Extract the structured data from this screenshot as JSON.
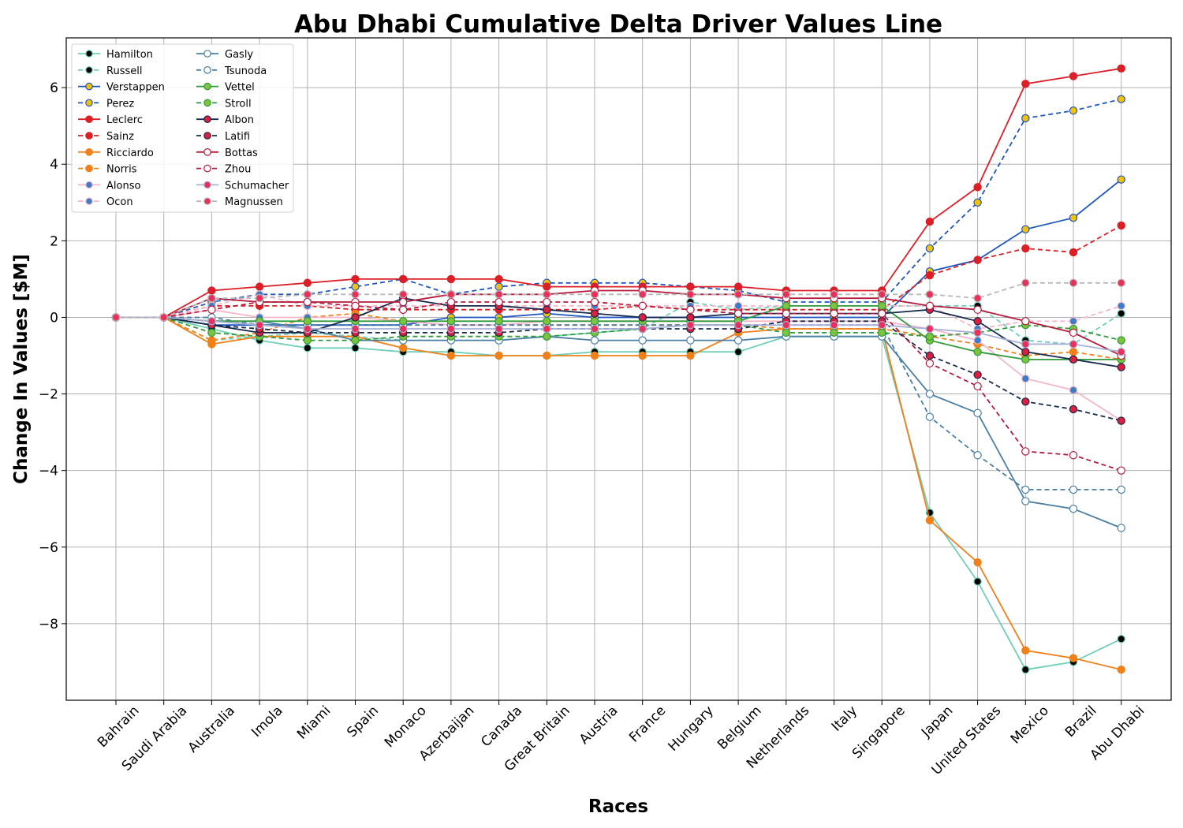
{
  "chart_data": {
    "type": "line",
    "title": "Abu Dhabi Cumulative Delta Driver Values Line",
    "xlabel": "Races",
    "ylabel": "Change In Values [$M]",
    "ylim": [
      -10,
      7.3
    ],
    "yticks": [
      -8,
      -6,
      -4,
      -2,
      0,
      2,
      4,
      6
    ],
    "grid": true,
    "legend_placement": "top-left",
    "categories": [
      "Bahrain",
      "Saudi Arabia",
      "Australia",
      "Imola",
      "Miami",
      "Spain",
      "Monaco",
      "Azerbaijan",
      "Canada",
      "Great Britain",
      "Austria",
      "France",
      "Hungary",
      "Belgium",
      "Netherlands",
      "Italy",
      "Singapore",
      "Japan",
      "United States",
      "Mexico",
      "Brazil",
      "Abu Dhabi"
    ],
    "series": [
      {
        "name": "Hamilton",
        "color": "#6fcfb9",
        "marker": "#000000",
        "dash": false,
        "values": [
          0,
          0,
          -0.3,
          -0.6,
          -0.8,
          -0.8,
          -0.9,
          -0.9,
          -1.0,
          -1.0,
          -0.9,
          -0.9,
          -0.9,
          -0.9,
          -0.5,
          -0.5,
          -0.5,
          -5.1,
          -6.9,
          -9.2,
          -9.0,
          -8.4
        ]
      },
      {
        "name": "Russell",
        "color": "#6fcfb9",
        "marker": "#000000",
        "dash": true,
        "values": [
          0,
          0,
          -0.6,
          -0.5,
          -0.4,
          -0.5,
          -0.6,
          -0.6,
          -0.6,
          -0.5,
          -0.4,
          -0.3,
          0.4,
          0.2,
          0.3,
          0.3,
          0.3,
          0.3,
          0.3,
          -0.6,
          -0.7,
          0.1
        ]
      },
      {
        "name": "Verstappen",
        "color": "#1f56c0",
        "marker": "#f0c20e",
        "dash": false,
        "values": [
          0,
          0,
          -0.2,
          -0.2,
          -0.2,
          -0.2,
          -0.2,
          0.0,
          0.0,
          0.1,
          0.0,
          0.0,
          0.0,
          0.0,
          0.0,
          0.0,
          0.0,
          1.2,
          1.5,
          2.3,
          2.6,
          3.6
        ]
      },
      {
        "name": "Perez",
        "color": "#1f56c0",
        "marker": "#f0c20e",
        "dash": true,
        "values": [
          0,
          0,
          0.4,
          0.6,
          0.6,
          0.8,
          1.0,
          0.6,
          0.8,
          0.9,
          0.9,
          0.9,
          0.8,
          0.7,
          0.4,
          0.4,
          0.4,
          1.8,
          3.0,
          5.2,
          5.4,
          5.7
        ]
      },
      {
        "name": "Leclerc",
        "color": "#dc1f26",
        "marker": "#dc1f26",
        "dash": false,
        "values": [
          0,
          0,
          0.7,
          0.8,
          0.9,
          1.0,
          1.0,
          1.0,
          1.0,
          0.8,
          0.8,
          0.8,
          0.8,
          0.8,
          0.7,
          0.7,
          0.7,
          2.5,
          3.4,
          6.1,
          6.3,
          6.5
        ]
      },
      {
        "name": "Sainz",
        "color": "#dc1f26",
        "marker": "#dc1f26",
        "dash": true,
        "values": [
          0,
          0,
          0.3,
          0.3,
          0.3,
          0.2,
          0.2,
          0.2,
          0.2,
          0.2,
          0.2,
          0.3,
          0.2,
          0.2,
          0.2,
          0.2,
          0.2,
          1.1,
          1.5,
          1.8,
          1.7,
          2.4
        ]
      },
      {
        "name": "Ricciardo",
        "color": "#f08019",
        "marker": "#f08019",
        "dash": false,
        "values": [
          0,
          0,
          -0.7,
          -0.5,
          -0.5,
          -0.5,
          -0.8,
          -1.0,
          -1.0,
          -1.0,
          -1.0,
          -1.0,
          -1.0,
          -0.4,
          -0.3,
          -0.3,
          -0.3,
          -5.3,
          -6.4,
          -8.7,
          -8.9,
          -9.2
        ]
      },
      {
        "name": "Norris",
        "color": "#f08019",
        "marker": "#f08019",
        "dash": true,
        "values": [
          0,
          0,
          -0.6,
          -0.4,
          0.0,
          0.1,
          -0.1,
          -0.2,
          -0.2,
          -0.2,
          -0.2,
          -0.2,
          -0.2,
          -0.2,
          -0.3,
          -0.3,
          -0.3,
          -0.5,
          -0.7,
          -1.0,
          -0.9,
          -1.1
        ]
      },
      {
        "name": "Alonso",
        "color": "#f4b6c8",
        "marker": "#3a7ec8",
        "dash": false,
        "values": [
          0,
          0,
          0.2,
          0.0,
          0.0,
          0.0,
          -0.1,
          -0.2,
          -0.2,
          -0.1,
          -0.1,
          -0.1,
          -0.1,
          -0.1,
          -0.1,
          -0.1,
          -0.1,
          -0.3,
          -0.6,
          -1.6,
          -1.9,
          -2.7
        ]
      },
      {
        "name": "Ocon",
        "color": "#f4b6c8",
        "marker": "#3a7ec8",
        "dash": true,
        "values": [
          0,
          0,
          0.3,
          0.6,
          0.3,
          0.3,
          0.3,
          0.3,
          0.3,
          0.3,
          0.3,
          0.3,
          0.3,
          0.3,
          0.3,
          0.3,
          0.3,
          0.3,
          -0.3,
          -0.1,
          -0.1,
          0.3
        ]
      },
      {
        "name": "Gasly",
        "color": "#4a7fa3",
        "marker": "#ffffff",
        "dash": false,
        "values": [
          0,
          0,
          -0.1,
          -0.1,
          -0.3,
          -0.6,
          -0.6,
          -0.6,
          -0.6,
          -0.5,
          -0.6,
          -0.6,
          -0.6,
          -0.6,
          -0.5,
          -0.5,
          -0.5,
          -2.0,
          -2.5,
          -4.8,
          -5.0,
          -5.5
        ]
      },
      {
        "name": "Tsunoda",
        "color": "#4a7fa3",
        "marker": "#ffffff",
        "dash": true,
        "values": [
          0,
          0,
          0.0,
          -0.2,
          -0.2,
          -0.2,
          -0.2,
          -0.2,
          -0.2,
          -0.2,
          -0.2,
          -0.2,
          -0.2,
          -0.2,
          -0.2,
          -0.2,
          -0.2,
          -2.6,
          -3.6,
          -4.5,
          -4.5,
          -4.5
        ]
      },
      {
        "name": "Vettel",
        "color": "#2f9a3a",
        "marker": "#7cc440",
        "dash": false,
        "values": [
          0,
          0,
          -0.1,
          -0.1,
          -0.1,
          -0.1,
          -0.1,
          -0.1,
          -0.1,
          -0.1,
          -0.1,
          -0.1,
          -0.1,
          -0.1,
          0.3,
          0.3,
          0.3,
          -0.6,
          -0.9,
          -1.1,
          -1.1,
          -1.1
        ]
      },
      {
        "name": "Stroll",
        "color": "#2f9a3a",
        "marker": "#7cc440",
        "dash": true,
        "values": [
          0,
          0,
          -0.4,
          -0.5,
          -0.6,
          -0.6,
          -0.5,
          -0.5,
          -0.5,
          -0.5,
          -0.4,
          -0.3,
          -0.2,
          -0.2,
          -0.4,
          -0.4,
          -0.4,
          -0.5,
          -0.4,
          -0.2,
          -0.3,
          -0.6
        ]
      },
      {
        "name": "Albon",
        "color": "#172a4d",
        "marker": "#dc1f3c",
        "dash": false,
        "values": [
          0,
          0,
          -0.2,
          -0.4,
          -0.4,
          0.0,
          0.5,
          0.3,
          0.3,
          0.2,
          0.1,
          0.0,
          0.0,
          0.1,
          0.1,
          0.1,
          0.1,
          0.2,
          -0.1,
          -0.9,
          -1.1,
          -1.3
        ]
      },
      {
        "name": "Latifi",
        "color": "#172a4d",
        "marker": "#dc1f3c",
        "dash": true,
        "values": [
          0,
          0,
          -0.2,
          -0.3,
          -0.4,
          -0.4,
          -0.4,
          -0.4,
          -0.4,
          -0.3,
          -0.3,
          -0.3,
          -0.3,
          -0.3,
          -0.1,
          -0.1,
          -0.1,
          -1.0,
          -1.5,
          -2.2,
          -2.4,
          -2.7
        ]
      },
      {
        "name": "Bottas",
        "color": "#b51b3e",
        "marker": "#ffffff",
        "dash": false,
        "values": [
          0,
          0,
          0.5,
          0.4,
          0.4,
          0.4,
          0.4,
          0.6,
          0.6,
          0.6,
          0.7,
          0.7,
          0.6,
          0.6,
          0.5,
          0.5,
          0.5,
          0.3,
          0.2,
          -0.1,
          -0.4,
          -1.0
        ]
      },
      {
        "name": "Zhou",
        "color": "#b51b3e",
        "marker": "#ffffff",
        "dash": true,
        "values": [
          0,
          0,
          0.2,
          0.4,
          0.4,
          0.3,
          0.2,
          0.4,
          0.4,
          0.4,
          0.4,
          0.3,
          0.2,
          0.1,
          0.1,
          0.1,
          0.1,
          -1.2,
          -1.8,
          -3.5,
          -3.6,
          -4.0
        ]
      },
      {
        "name": "Schumacher",
        "color": "#a8b0d8",
        "marker": "#e8305a",
        "dash": false,
        "values": [
          0,
          0,
          -0.1,
          -0.2,
          -0.3,
          -0.3,
          -0.3,
          -0.3,
          -0.3,
          -0.3,
          -0.3,
          -0.3,
          -0.2,
          -0.2,
          -0.2,
          -0.2,
          -0.2,
          -0.3,
          -0.4,
          -0.7,
          -0.7,
          -0.9
        ]
      },
      {
        "name": "Magnussen",
        "color": "#b8b8b8",
        "marker": "#e8305a",
        "dash": true,
        "values": [
          0,
          0,
          0.5,
          0.5,
          0.6,
          0.6,
          0.6,
          0.6,
          0.6,
          0.6,
          0.6,
          0.6,
          0.6,
          0.6,
          0.6,
          0.6,
          0.6,
          0.6,
          0.5,
          0.9,
          0.9,
          0.9
        ]
      }
    ]
  }
}
